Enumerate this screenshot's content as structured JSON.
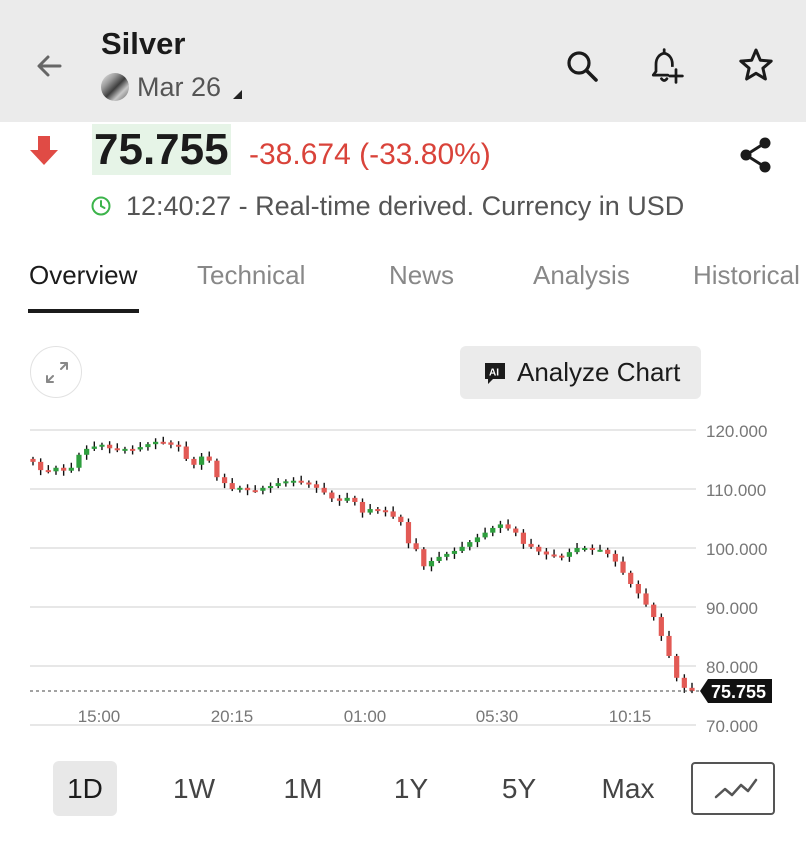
{
  "header": {
    "title": "Silver",
    "contract": "Mar 26",
    "icons": [
      "back-arrow-icon",
      "search-icon",
      "add-alert-bell-icon",
      "star-icon"
    ]
  },
  "quote": {
    "price": "75.755",
    "change": "-38.674 (-33.80%)",
    "direction": "down",
    "time_info": "12:40:27 - Real-time derived. Currency in USD",
    "colors": {
      "down": "#d9433a",
      "price_highlight": "#e6f4e7",
      "realtime_clock": "#3cb44b"
    }
  },
  "tabs": [
    {
      "label": "Overview",
      "active": true
    },
    {
      "label": "Technical",
      "active": false
    },
    {
      "label": "News",
      "active": false
    },
    {
      "label": "Analysis",
      "active": false
    },
    {
      "label": "Historical",
      "active": false
    }
  ],
  "chart_toolbar": {
    "analyze_label": "Analyze Chart",
    "ai_badge": "AI"
  },
  "chart_data": {
    "type": "candlestick",
    "y_ticks": [
      "120.000",
      "110.000",
      "100.000",
      "90.000",
      "80.000",
      "70.000"
    ],
    "x_ticks": [
      "15:00",
      "20:15",
      "01:00",
      "05:30",
      "10:15"
    ],
    "ylim": [
      70,
      120
    ],
    "last_price_label": "75.755",
    "colors": {
      "up": "#2e9e3e",
      "down": "#e25a55",
      "grid": "#cfcfcf"
    },
    "series_close": [
      114.6,
      113.2,
      113.0,
      113.6,
      113.1,
      113.6,
      115.8,
      116.8,
      117.2,
      117.5,
      116.9,
      116.6,
      116.8,
      116.7,
      117.1,
      117.6,
      118.0,
      117.9,
      117.5,
      117.2,
      115.1,
      114.1,
      115.5,
      114.8,
      112.0,
      111.0,
      110.0,
      110.2,
      109.8,
      109.7,
      110.2,
      110.5,
      111.0,
      111.3,
      111.4,
      111.1,
      110.8,
      110.2,
      109.4,
      108.4,
      108.0,
      108.5,
      107.8,
      106.0,
      106.6,
      106.4,
      106.2,
      105.3,
      104.4,
      100.8,
      99.8,
      96.9,
      97.8,
      98.5,
      99.0,
      99.5,
      100.2,
      101.0,
      101.8,
      102.6,
      103.4,
      104.0,
      103.3,
      102.6,
      100.7,
      100.2,
      99.4,
      98.9,
      98.7,
      98.5,
      99.3,
      100.0,
      100.0,
      99.7,
      99.7,
      99.0,
      97.7,
      95.8,
      93.9,
      92.3,
      90.4,
      88.3,
      85.1,
      81.7,
      78.0,
      76.3,
      75.755
    ]
  },
  "time_ranges": [
    {
      "label": "1D",
      "active": true
    },
    {
      "label": "1W",
      "active": false
    },
    {
      "label": "1M",
      "active": false
    },
    {
      "label": "1Y",
      "active": false
    },
    {
      "label": "5Y",
      "active": false
    },
    {
      "label": "Max",
      "active": false
    }
  ],
  "chart_type_icon": "line-chart-icon"
}
